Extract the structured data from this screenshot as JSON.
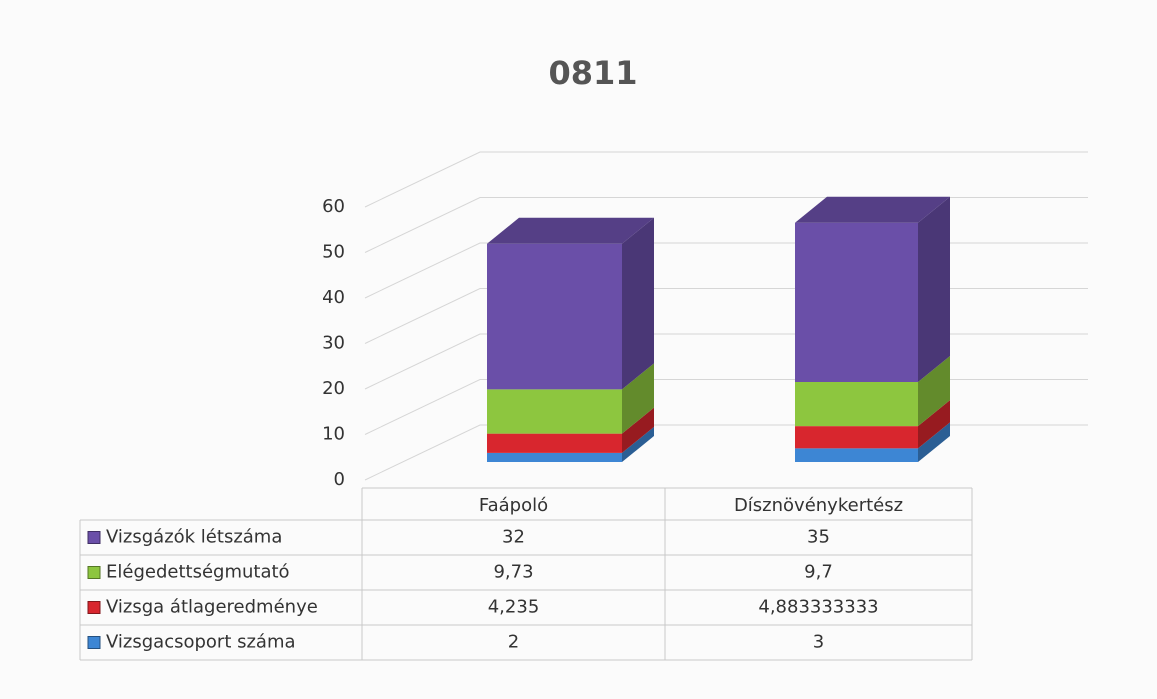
{
  "chart_data": {
    "type": "bar3d_stacked",
    "title": "0811",
    "categories": [
      "Faápoló",
      "Dísznövénykertész"
    ],
    "series": [
      {
        "name": "Vizsgázók létszáma",
        "color": "#6a4fa8",
        "values": [
          32,
          35
        ]
      },
      {
        "name": "Elégedettségmutató",
        "color": "#8dc63f",
        "values": [
          9.73,
          9.7
        ],
        "value_labels": [
          "9,73",
          "9,7"
        ]
      },
      {
        "name": "Vizsga átlageredménye",
        "color": "#d8262e",
        "values": [
          4.235,
          4.883333333
        ],
        "value_labels": [
          "4,235",
          "4,883333333"
        ]
      },
      {
        "name": "Vizsgacsoport száma",
        "color": "#3d86d4",
        "values": [
          2,
          3
        ]
      }
    ],
    "ylim": [
      0,
      60
    ],
    "yticks": [
      0,
      10,
      20,
      30,
      40,
      50,
      60
    ],
    "grid": true,
    "legend": "table"
  }
}
